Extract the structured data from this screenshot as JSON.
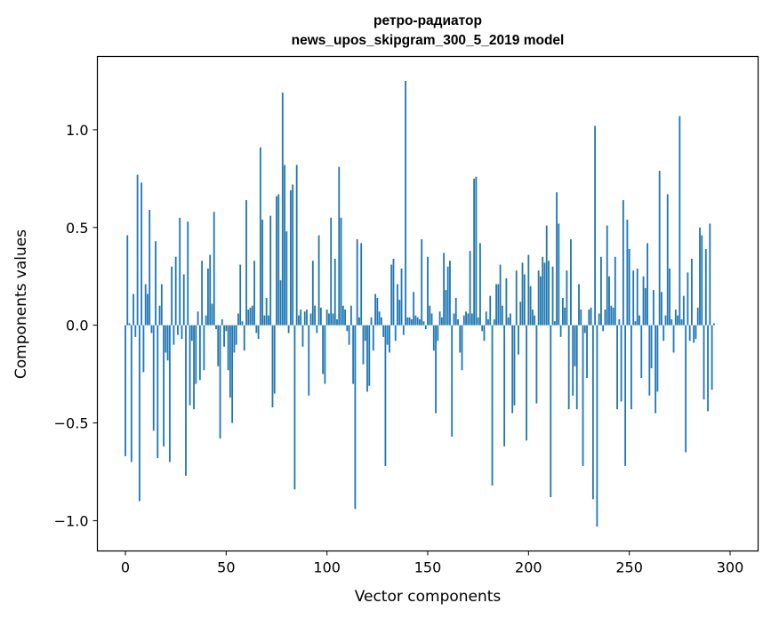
{
  "chart_data": {
    "type": "bar",
    "title": [
      "ретро-радиатор",
      "news_upos_skipgram_300_5_2019 model"
    ],
    "xlabel": "Vector components",
    "ylabel": "Components values",
    "xlim": [
      -13.9,
      313.9
    ],
    "ylim": [
      -1.155,
      1.375
    ],
    "xticks": [
      0,
      50,
      100,
      150,
      200,
      250,
      300
    ],
    "yticks": [
      -1.0,
      -0.5,
      0.0,
      0.5,
      1.0
    ],
    "ytick_labels": [
      "−1.0",
      "−0.5",
      "0.0",
      "0.5",
      "1.0"
    ],
    "bar_color": "#1f77b4",
    "values": [
      -0.67,
      0.46,
      0.01,
      -0.7,
      0.16,
      -0.06,
      0.77,
      -0.9,
      0.73,
      -0.24,
      0.21,
      0.16,
      0.59,
      -0.04,
      -0.54,
      0.43,
      -0.68,
      0.1,
      0.21,
      -0.62,
      -0.14,
      -0.18,
      -0.7,
      0.3,
      -0.1,
      0.35,
      -0.05,
      0.55,
      -0.07,
      0.26,
      -0.77,
      0.53,
      -0.41,
      -0.08,
      -0.43,
      -0.3,
      0.07,
      -0.28,
      0.33,
      -0.23,
      0.05,
      0.29,
      0.36,
      0.11,
      0.58,
      -0.02,
      -0.21,
      -0.58,
      0.03,
      -0.11,
      -0.03,
      -0.23,
      -0.37,
      -0.5,
      -0.14,
      -0.1,
      0.06,
      0.31,
      0.02,
      -0.13,
      0.64,
      0.08,
      0.09,
      0.1,
      0.33,
      -0.04,
      -0.07,
      0.91,
      0.54,
      0.05,
      0.14,
      0.05,
      0.56,
      -0.42,
      -0.35,
      0.66,
      0.67,
      0.23,
      1.19,
      0.82,
      0.48,
      -0.04,
      0.69,
      0.72,
      -0.84,
      0.82,
      0.05,
      0.08,
      -0.11,
      0.07,
      0.08,
      -0.36,
      0.06,
      0.33,
      0.1,
      -0.04,
      0.46,
      0.09,
      -0.25,
      -0.3,
      0.08,
      0.06,
      0.55,
      0.06,
      0.34,
      0.03,
      0.81,
      0.55,
      0.1,
      0.08,
      -0.03,
      -0.1,
      0.1,
      -0.3,
      -0.94,
      0.44,
      0.04,
      0.42,
      -0.2,
      -0.08,
      -0.34,
      -0.31,
      0.04,
      -0.13,
      0.16,
      0.14,
      0.07,
      0.04,
      -0.06,
      -0.72,
      -0.1,
      -0.14,
      0.31,
      0.34,
      -0.08,
      0.21,
      0.13,
      0.29,
      -0.05,
      1.25,
      0.04,
      0.04,
      0.03,
      0.17,
      0.05,
      0.04,
      0.03,
      0.44,
      0.02,
      -0.02,
      0.35,
      0.1,
      0.06,
      -0.13,
      -0.45,
      -0.08,
      0.07,
      0.04,
      0.37,
      0.18,
      0.3,
      0.33,
      -0.57,
      0.06,
      0.14,
      0.03,
      -0.14,
      -0.23,
      0.05,
      0.07,
      0.06,
      0.38,
      0.06,
      0.75,
      0.76,
      0.04,
      0.42,
      -0.03,
      -0.08,
      0.07,
      0.03,
      0.15,
      -0.82,
      0.03,
      0.21,
      0.21,
      0.31,
      0.1,
      -0.62,
      0.24,
      0.04,
      0.06,
      -0.45,
      -0.41,
      0.28,
      -0.15,
      0.12,
      0.32,
      0.26,
      -0.59,
      0.36,
      0.2,
      0.08,
      0.05,
      -0.4,
      0.28,
      0.25,
      0.35,
      0.32,
      0.51,
      0.33,
      -0.88,
      0.3,
      0.02,
      0.68,
      0.52,
      -0.06,
      0.14,
      0.09,
      0.28,
      -0.43,
      0.44,
      -0.36,
      -0.21,
      -0.43,
      0.21,
      0.08,
      -0.72,
      -0.04,
      -0.27,
      0.08,
      0.09,
      -0.89,
      1.02,
      -1.03,
      0.06,
      0.35,
      -0.03,
      0.08,
      0.51,
      0.25,
      0.1,
      0.09,
      0.35,
      -0.43,
      0.03,
      -0.39,
      0.64,
      -0.72,
      0.54,
      0.39,
      -0.43,
      0.28,
      0.02,
      0.29,
      0.05,
      -0.27,
      0.25,
      0.19,
      0.42,
      -0.36,
      -0.22,
      0.18,
      -0.45,
      -0.34,
      0.79,
      0.17,
      -0.08,
      0.05,
      0.67,
      0.29,
      0.03,
      -0.14,
      0.08,
      0.05,
      1.07,
      0.03,
      0.15,
      -0.65,
      0.27,
      -0.08,
      0.34,
      -0.09,
      -0.07,
      0.09,
      0.5,
      0.46,
      -0.38,
      0.39,
      -0.44,
      0.52,
      -0.33,
      0.01
    ]
  }
}
